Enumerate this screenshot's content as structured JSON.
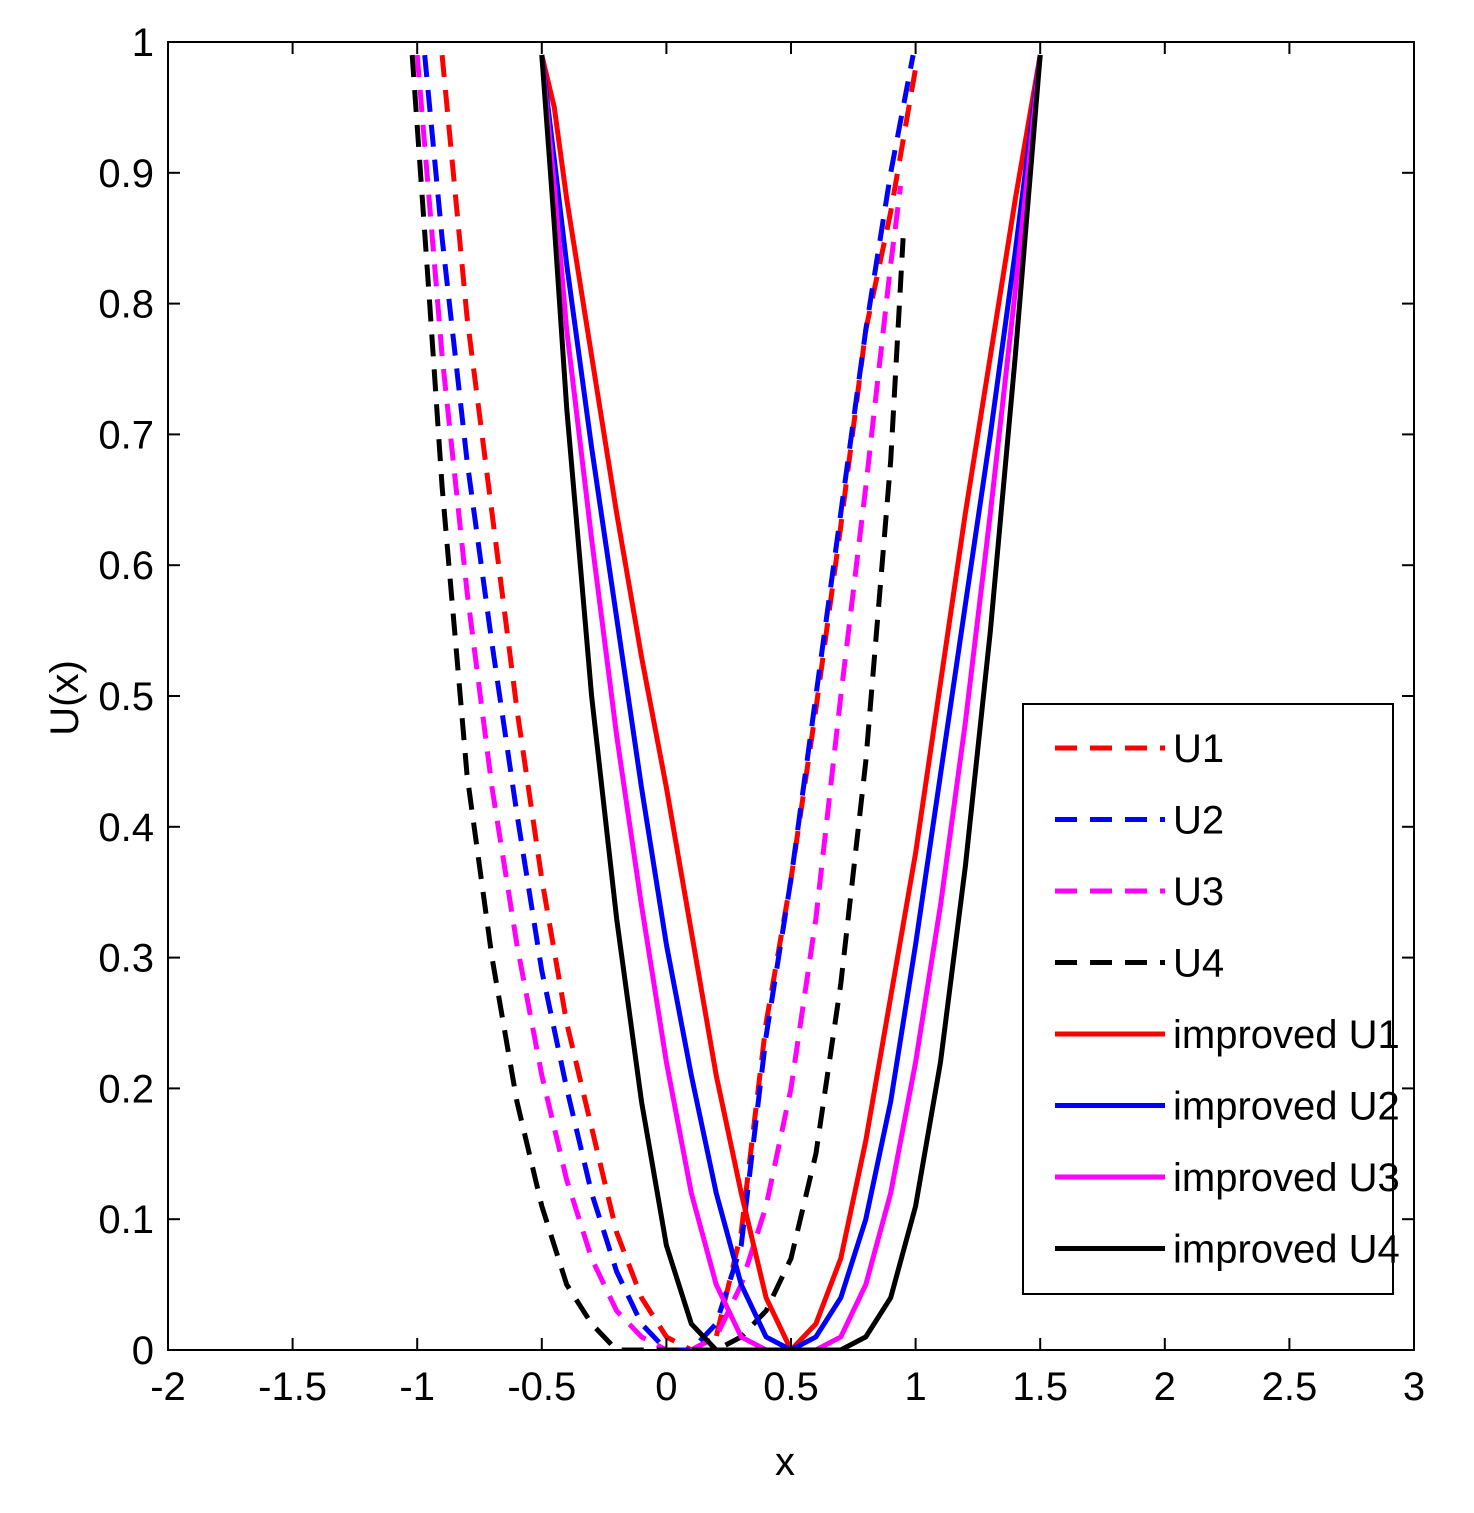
{
  "chart_data": {
    "type": "line",
    "title": "",
    "xlabel": "x",
    "ylabel": "U(x)",
    "xlim": [
      -2,
      3
    ],
    "ylim": [
      0,
      1
    ],
    "xticks": [
      "-2",
      "-1.5",
      "-1",
      "-0.5",
      "0",
      "0.5",
      "1",
      "1.5",
      "2",
      "2.5",
      "3"
    ],
    "yticks": [
      "0",
      "0.1",
      "0.2",
      "0.3",
      "0.4",
      "0.5",
      "0.6",
      "0.7",
      "0.8",
      "0.9",
      "1"
    ],
    "legend_position": "bottom-right",
    "series": [
      {
        "name": "U1",
        "color": "#ff0000",
        "style": "dashed",
        "x": [
          -0.9,
          -0.8,
          -0.7,
          -0.6,
          -0.5,
          -0.4,
          -0.3,
          -0.2,
          -0.1,
          0.0,
          0.1,
          0.2,
          0.3,
          0.4,
          0.5,
          0.6,
          0.7,
          0.8,
          0.9,
          1.0
        ],
        "y": [
          0.99,
          0.79,
          0.64,
          0.49,
          0.36,
          0.25,
          0.17,
          0.09,
          0.04,
          0.01,
          0.0,
          0.01,
          0.09,
          0.25,
          0.36,
          0.49,
          0.63,
          0.78,
          0.87,
          0.98
        ]
      },
      {
        "name": "U2",
        "color": "#0000ff",
        "style": "dashed",
        "x": [
          -0.97,
          -0.9,
          -0.8,
          -0.7,
          -0.6,
          -0.5,
          -0.4,
          -0.3,
          -0.2,
          -0.1,
          0.0,
          0.1,
          0.2,
          0.3,
          0.4,
          0.5,
          0.6,
          0.7,
          0.8,
          0.9,
          0.99
        ],
        "y": [
          0.99,
          0.85,
          0.68,
          0.54,
          0.41,
          0.29,
          0.2,
          0.12,
          0.06,
          0.02,
          0.0,
          0.0,
          0.02,
          0.08,
          0.24,
          0.36,
          0.5,
          0.64,
          0.78,
          0.9,
          0.99
        ]
      },
      {
        "name": "U3",
        "color": "#ff00ff",
        "style": "dashed",
        "x": [
          -1.0,
          -0.9,
          -0.8,
          -0.7,
          -0.6,
          -0.5,
          -0.4,
          -0.3,
          -0.2,
          -0.1,
          0.0,
          0.1,
          0.2,
          0.3,
          0.4,
          0.5,
          0.6,
          0.7,
          0.8,
          0.9,
          0.94
        ],
        "y": [
          0.99,
          0.76,
          0.58,
          0.43,
          0.31,
          0.21,
          0.13,
          0.07,
          0.03,
          0.01,
          0.0,
          0.0,
          0.01,
          0.05,
          0.11,
          0.2,
          0.33,
          0.5,
          0.66,
          0.83,
          0.89
        ]
      },
      {
        "name": "U4",
        "color": "#000000",
        "style": "dashed",
        "x": [
          -1.02,
          -0.95,
          -0.9,
          -0.85,
          -0.8,
          -0.7,
          -0.6,
          -0.5,
          -0.4,
          -0.3,
          -0.2,
          -0.1,
          0.0,
          0.1,
          0.2,
          0.3,
          0.4,
          0.5,
          0.6,
          0.7,
          0.8,
          0.9,
          0.95
        ],
        "y": [
          0.99,
          0.8,
          0.66,
          0.55,
          0.44,
          0.3,
          0.19,
          0.11,
          0.05,
          0.02,
          0.0,
          0.0,
          0.0,
          0.0,
          0.0,
          0.01,
          0.03,
          0.07,
          0.15,
          0.28,
          0.45,
          0.68,
          0.85
        ]
      },
      {
        "name": "improved U1",
        "color": "#ff0000",
        "style": "solid",
        "x": [
          -0.5,
          -0.45,
          -0.4,
          -0.3,
          -0.2,
          -0.1,
          0.0,
          0.1,
          0.2,
          0.3,
          0.4,
          0.5,
          0.6,
          0.7,
          0.8,
          0.9,
          1.0,
          1.1,
          1.2,
          1.3,
          1.4,
          1.5
        ],
        "y": [
          0.99,
          0.95,
          0.88,
          0.76,
          0.64,
          0.53,
          0.43,
          0.32,
          0.21,
          0.12,
          0.04,
          0.0,
          0.02,
          0.07,
          0.16,
          0.27,
          0.38,
          0.51,
          0.64,
          0.76,
          0.88,
          0.99
        ]
      },
      {
        "name": "improved U2",
        "color": "#0000ff",
        "style": "solid",
        "x": [
          -0.5,
          -0.45,
          -0.4,
          -0.3,
          -0.2,
          -0.1,
          0.0,
          0.1,
          0.2,
          0.3,
          0.4,
          0.5,
          0.6,
          0.7,
          0.8,
          0.9,
          1.0,
          1.1,
          1.2,
          1.3,
          1.4,
          1.5
        ],
        "y": [
          0.99,
          0.91,
          0.83,
          0.69,
          0.56,
          0.43,
          0.31,
          0.21,
          0.12,
          0.05,
          0.01,
          0.0,
          0.01,
          0.04,
          0.1,
          0.19,
          0.31,
          0.44,
          0.57,
          0.7,
          0.84,
          0.99
        ]
      },
      {
        "name": "improved U3",
        "color": "#ff00ff",
        "style": "solid",
        "x": [
          -0.5,
          -0.45,
          -0.4,
          -0.3,
          -0.2,
          -0.1,
          0.0,
          0.1,
          0.2,
          0.3,
          0.4,
          0.5,
          0.6,
          0.7,
          0.8,
          0.9,
          1.0,
          1.1,
          1.2,
          1.3,
          1.4,
          1.5
        ],
        "y": [
          0.99,
          0.89,
          0.78,
          0.62,
          0.47,
          0.34,
          0.22,
          0.12,
          0.05,
          0.01,
          0.0,
          0.0,
          0.0,
          0.01,
          0.05,
          0.12,
          0.22,
          0.34,
          0.48,
          0.64,
          0.81,
          0.99
        ]
      },
      {
        "name": "improved U4",
        "color": "#000000",
        "style": "solid",
        "x": [
          -0.5,
          -0.45,
          -0.4,
          -0.35,
          -0.3,
          -0.2,
          -0.1,
          0.0,
          0.1,
          0.2,
          0.3,
          0.4,
          0.5,
          0.6,
          0.7,
          0.8,
          0.9,
          1.0,
          1.1,
          1.2,
          1.3,
          1.4,
          1.5
        ],
        "y": [
          0.99,
          0.86,
          0.72,
          0.61,
          0.5,
          0.33,
          0.19,
          0.08,
          0.02,
          0.0,
          0.0,
          0.0,
          0.0,
          0.0,
          0.0,
          0.01,
          0.04,
          0.11,
          0.22,
          0.37,
          0.55,
          0.76,
          0.99
        ]
      }
    ]
  }
}
